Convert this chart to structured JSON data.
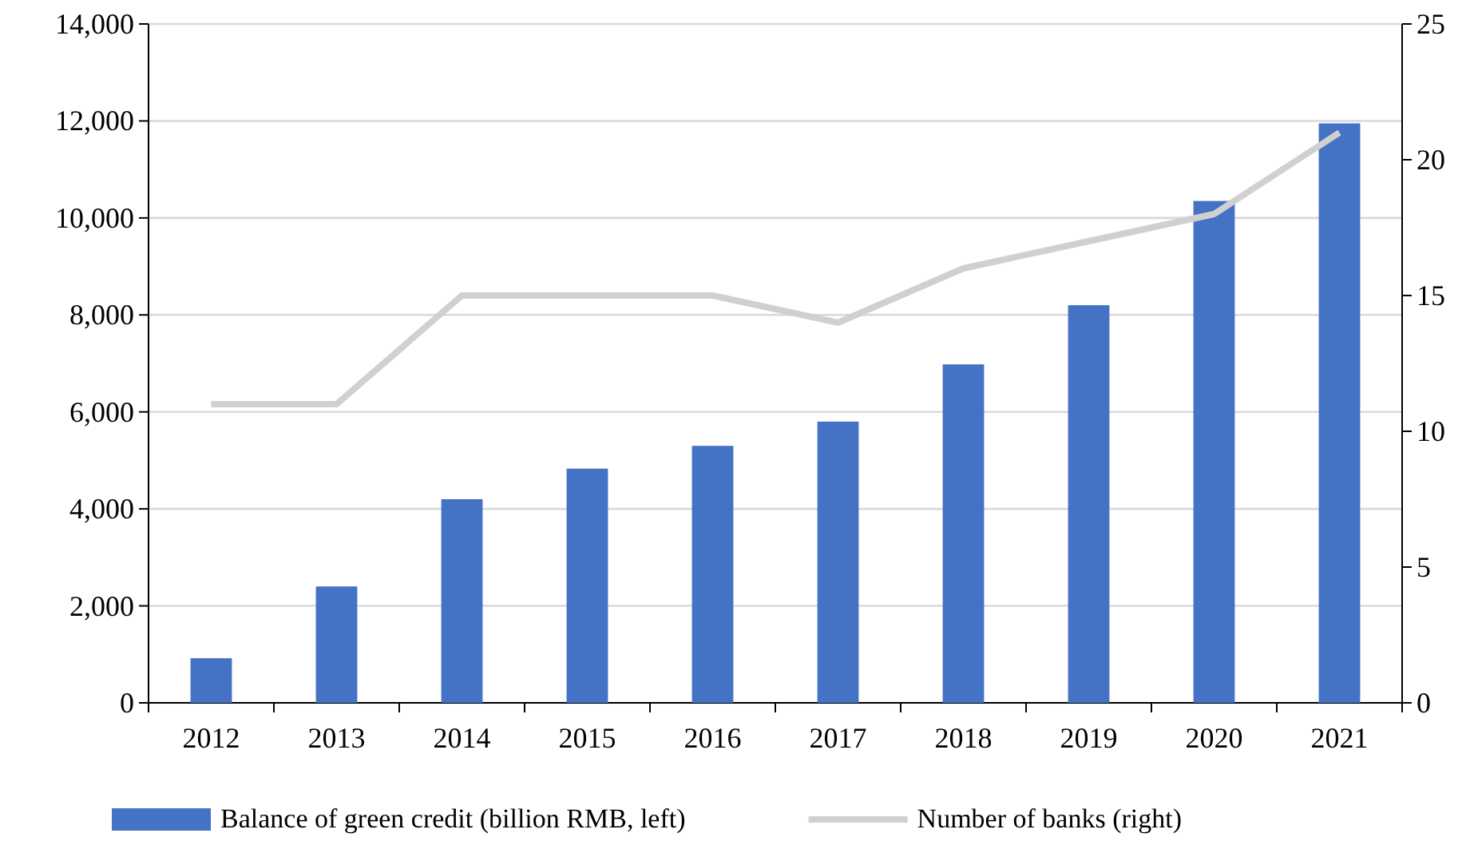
{
  "chart_data": {
    "type": "bar",
    "categories": [
      "2012",
      "2013",
      "2014",
      "2015",
      "2016",
      "2017",
      "2018",
      "2019",
      "2020",
      "2021"
    ],
    "series": [
      {
        "name": "Balance of green credit (billion RMB, left)",
        "color": "#4472c4",
        "values": [
          920,
          2400,
          4200,
          4830,
          5300,
          5800,
          6980,
          8200,
          10350,
          11950
        ]
      },
      {
        "name": "Number of banks (right)",
        "type": "line",
        "axis": "y2",
        "color": "#d0d0d0",
        "values": [
          11,
          11,
          15,
          15,
          15,
          14,
          16,
          17,
          18,
          21
        ]
      }
    ],
    "ylim": [
      0,
      14000
    ],
    "yticks": [
      {
        "value": 0,
        "label": "0"
      },
      {
        "value": 2000,
        "label": "2,000"
      },
      {
        "value": 4000,
        "label": "4,000"
      },
      {
        "value": 6000,
        "label": "6,000"
      },
      {
        "value": 8000,
        "label": "8,000"
      },
      {
        "value": 10000,
        "label": "10,000"
      },
      {
        "value": 12000,
        "label": "12,000"
      },
      {
        "value": 14000,
        "label": "14,000"
      }
    ],
    "y2lim": [
      0,
      25
    ],
    "y2ticks": [
      0,
      5,
      10,
      15,
      20,
      25
    ],
    "grid": "y",
    "legend": "bottom",
    "marker": "none",
    "line_style": "solid"
  }
}
